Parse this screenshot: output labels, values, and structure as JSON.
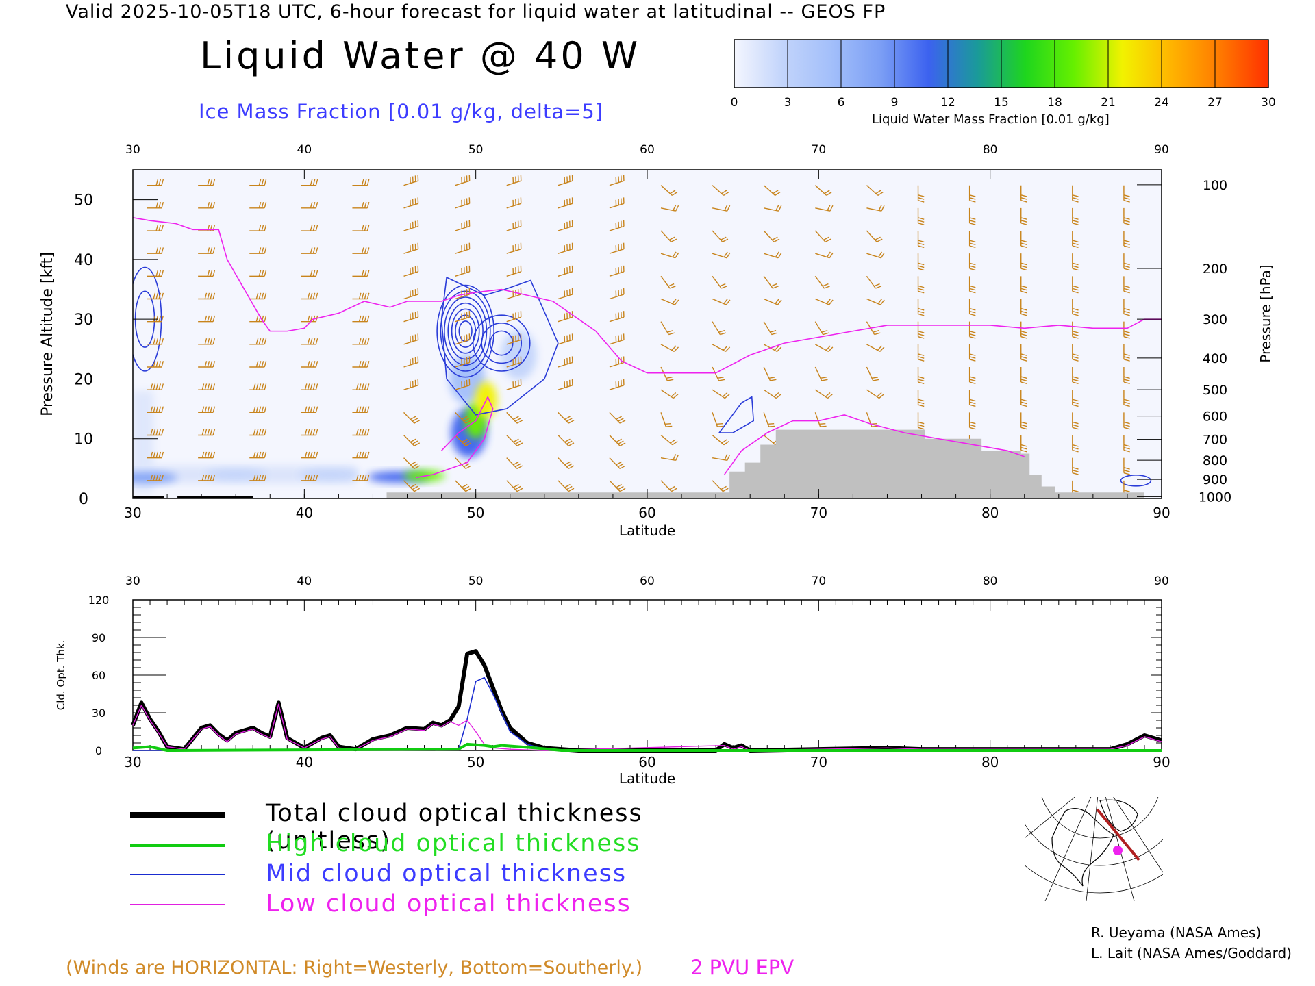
{
  "header": {
    "valid_line": "Valid 2025-10-05T18 UTC, 6-hour forecast for liquid water at latitudinal -- GEOS FP",
    "title": "Liquid Water @ 40 W",
    "ice_label": "Ice Mass Fraction [0.01 g/kg, delta=5]"
  },
  "colorbar": {
    "label": "Liquid Water Mass Fraction [0.01 g/kg]",
    "ticks": [
      "0",
      "3",
      "6",
      "9",
      "12",
      "15",
      "18",
      "21",
      "24",
      "27",
      "30"
    ],
    "colors": [
      "#f4f6fe",
      "#c2d4fb",
      "#a3bffa",
      "#7c9ff5",
      "#3c62ef",
      "#1a9a9a",
      "#1ed51e",
      "#66f000",
      "#f2f200",
      "#ffb400",
      "#ff7a00",
      "#ff3000"
    ]
  },
  "chart_data": [
    {
      "type": "heatmap",
      "xlabel": "Latitude",
      "ylabel": "Pressure Altitude [kft]",
      "y2label": "Pressure [hPa]",
      "xlim": [
        30,
        90
      ],
      "ylim": [
        0,
        55
      ],
      "x_ticks": [
        "30",
        "40",
        "50",
        "60",
        "70",
        "80",
        "90"
      ],
      "y_ticks": [
        "0",
        "10",
        "20",
        "30",
        "40",
        "50"
      ],
      "pressure_ticks": [
        {
          "hpa": "100",
          "kft": 52.5
        },
        {
          "hpa": "200",
          "kft": 38.5
        },
        {
          "hpa": "300",
          "kft": 30.0
        },
        {
          "hpa": "400",
          "kft": 23.5
        },
        {
          "hpa": "500",
          "kft": 18.2
        },
        {
          "hpa": "600",
          "kft": 13.8
        },
        {
          "hpa": "700",
          "kft": 9.9
        },
        {
          "hpa": "800",
          "kft": 6.4
        },
        {
          "hpa": "900",
          "kft": 3.2
        },
        {
          "hpa": "1000",
          "kft": 0.3
        }
      ],
      "liquid_water_blobs": [
        {
          "lat": 50.6,
          "kft": 16.5,
          "value": 22
        },
        {
          "lat": 50.0,
          "kft": 13.0,
          "value": 18
        },
        {
          "lat": 49.6,
          "kft": 11.0,
          "value": 12
        },
        {
          "lat": 47.0,
          "kft": 3.8,
          "value": 20
        },
        {
          "lat": 45.5,
          "kft": 3.6,
          "value": 12
        },
        {
          "lat": 49.5,
          "kft": 20.0,
          "value": 6
        },
        {
          "lat": 52.5,
          "kft": 24.0,
          "value": 3
        },
        {
          "lat": 30.8,
          "kft": 3.5,
          "value": 8
        },
        {
          "lat": 36.0,
          "kft": 4.0,
          "value": 2
        },
        {
          "lat": 41.5,
          "kft": 4.0,
          "value": 2
        }
      ],
      "epv_2pvu_line": [
        [
          30,
          47
        ],
        [
          31,
          46.5
        ],
        [
          32.5,
          46
        ],
        [
          33.5,
          45
        ],
        [
          35,
          45
        ],
        [
          35.5,
          40
        ],
        [
          36.5,
          35
        ],
        [
          37.5,
          30
        ],
        [
          38,
          28
        ],
        [
          39,
          28
        ],
        [
          40,
          28.5
        ],
        [
          40.5,
          30
        ],
        [
          42,
          31
        ],
        [
          43.5,
          33
        ],
        [
          45,
          32
        ],
        [
          46,
          33
        ],
        [
          48,
          33
        ],
        [
          49,
          34
        ],
        [
          50,
          34.5
        ],
        [
          51.5,
          35
        ],
        [
          53,
          34
        ],
        [
          54.5,
          33
        ],
        [
          57,
          28
        ],
        [
          58.5,
          23
        ],
        [
          60,
          21
        ],
        [
          62,
          21
        ],
        [
          64,
          21
        ],
        [
          66,
          24
        ],
        [
          68,
          26
        ],
        [
          70,
          27
        ],
        [
          72,
          28
        ],
        [
          74,
          29
        ],
        [
          76,
          29
        ],
        [
          78,
          29
        ],
        [
          80,
          29
        ],
        [
          82,
          28.5
        ],
        [
          84,
          29
        ],
        [
          86,
          28.5
        ],
        [
          88,
          28.5
        ],
        [
          89,
          30
        ],
        [
          90,
          30
        ]
      ],
      "epv_low_line": [
        [
          48,
          8
        ],
        [
          49,
          11
        ],
        [
          50,
          13
        ],
        [
          50.7,
          17
        ],
        [
          51,
          15
        ],
        [
          50.5,
          10
        ],
        [
          49.5,
          6
        ],
        [
          48.5,
          5
        ],
        [
          47.5,
          4
        ],
        [
          46.5,
          3.5
        ]
      ],
      "epv_low_line_2": [
        [
          64.5,
          4
        ],
        [
          65.5,
          8
        ],
        [
          67,
          11
        ],
        [
          68.5,
          13
        ],
        [
          70,
          13
        ],
        [
          71.5,
          14
        ],
        [
          73,
          12.5
        ],
        [
          75,
          11
        ],
        [
          77,
          10
        ],
        [
          79,
          9
        ],
        [
          81,
          8
        ],
        [
          82,
          7
        ]
      ],
      "ice_contour_centers": [
        {
          "lat": 49.4,
          "kft": 28,
          "rx": 1.5,
          "ry": 7
        },
        {
          "lat": 51.5,
          "kft": 26,
          "rx": 1.5,
          "ry": 4
        },
        {
          "lat": 30.7,
          "kft": 30,
          "rx": 0.8,
          "ry": 8
        }
      ],
      "terrain_steps": [
        [
          44.8,
          1
        ],
        [
          64.3,
          1
        ],
        [
          64.8,
          4.5
        ],
        [
          65.7,
          6
        ],
        [
          66.6,
          9
        ],
        [
          67.5,
          11.5
        ],
        [
          76.2,
          10
        ],
        [
          79.5,
          8
        ],
        [
          81.8,
          7.5
        ],
        [
          82.3,
          4
        ],
        [
          83.0,
          2
        ],
        [
          83.8,
          1
        ],
        [
          89.0,
          0
        ]
      ]
    },
    {
      "type": "line",
      "xlabel": "Latitude",
      "ylabel": "Cld. Opt. Thk.",
      "xlim": [
        30,
        90
      ],
      "ylim": [
        0,
        120
      ],
      "x_ticks": [
        "30",
        "40",
        "50",
        "60",
        "70",
        "80",
        "90"
      ],
      "y_ticks": [
        "0",
        "30",
        "60",
        "90",
        "120"
      ],
      "series": [
        {
          "name": "Total cloud optical thickness (unitless)",
          "color": "#000000",
          "points": [
            [
              30,
              20
            ],
            [
              30.5,
              38
            ],
            [
              31,
              25
            ],
            [
              31.5,
              15
            ],
            [
              32,
              3
            ],
            [
              33,
              1
            ],
            [
              34,
              18
            ],
            [
              34.5,
              20
            ],
            [
              35,
              13
            ],
            [
              35.5,
              8
            ],
            [
              36,
              14
            ],
            [
              37,
              18
            ],
            [
              37.5,
              14
            ],
            [
              38,
              11
            ],
            [
              38.5,
              38
            ],
            [
              39,
              10
            ],
            [
              40,
              2
            ],
            [
              41,
              10
            ],
            [
              41.5,
              12
            ],
            [
              42,
              3
            ],
            [
              43,
              1
            ],
            [
              44,
              9
            ],
            [
              45,
              12
            ],
            [
              46,
              18
            ],
            [
              47,
              17
            ],
            [
              47.5,
              22
            ],
            [
              48,
              20
            ],
            [
              48.5,
              24
            ],
            [
              49,
              35
            ],
            [
              49.5,
              77
            ],
            [
              50,
              79
            ],
            [
              50.5,
              68
            ],
            [
              51,
              50
            ],
            [
              51.5,
              32
            ],
            [
              52,
              18
            ],
            [
              53,
              6
            ],
            [
              54,
              2
            ],
            [
              56,
              0
            ],
            [
              64,
              0
            ],
            [
              64.5,
              5
            ],
            [
              65,
              2
            ],
            [
              65.5,
              4
            ],
            [
              66,
              0
            ],
            [
              70,
              1
            ],
            [
              74,
              2
            ],
            [
              76,
              1
            ],
            [
              87,
              1
            ],
            [
              88,
              5
            ],
            [
              89,
              12
            ],
            [
              90,
              8
            ]
          ]
        },
        {
          "name": "High cloud optical thickness",
          "color": "#11cc11",
          "points": [
            [
              30,
              2
            ],
            [
              31,
              3
            ],
            [
              32,
              0
            ],
            [
              49,
              1
            ],
            [
              49.5,
              5
            ],
            [
              50.5,
              4
            ],
            [
              51,
              3
            ],
            [
              51.5,
              4
            ],
            [
              52.5,
              3
            ],
            [
              53.5,
              2
            ],
            [
              55,
              0
            ],
            [
              90,
              0
            ]
          ]
        },
        {
          "name": "Mid cloud optical thickness",
          "color": "#1a2cd0",
          "points": [
            [
              30,
              0
            ],
            [
              49,
              1
            ],
            [
              49.5,
              25
            ],
            [
              50,
              55
            ],
            [
              50.5,
              58
            ],
            [
              51,
              45
            ],
            [
              51.5,
              30
            ],
            [
              52,
              15
            ],
            [
              53,
              5
            ],
            [
              54,
              1
            ],
            [
              56,
              0
            ],
            [
              90,
              0
            ]
          ]
        },
        {
          "name": "Low cloud optical thickness",
          "color": "#e020e0",
          "points": [
            [
              30,
              20
            ],
            [
              30.5,
              36
            ],
            [
              31,
              24
            ],
            [
              31.5,
              14
            ],
            [
              32,
              3
            ],
            [
              33,
              1
            ],
            [
              34,
              17
            ],
            [
              34.5,
              19
            ],
            [
              35,
              12
            ],
            [
              35.5,
              7
            ],
            [
              36,
              13
            ],
            [
              37,
              17
            ],
            [
              37.5,
              13
            ],
            [
              38,
              10
            ],
            [
              38.5,
              37
            ],
            [
              39,
              9
            ],
            [
              40,
              2
            ],
            [
              41,
              9
            ],
            [
              41.5,
              11
            ],
            [
              42,
              2
            ],
            [
              43,
              1
            ],
            [
              44,
              8
            ],
            [
              45,
              11
            ],
            [
              46,
              17
            ],
            [
              47,
              16
            ],
            [
              47.5,
              21
            ],
            [
              48,
              19
            ],
            [
              48.5,
              23
            ],
            [
              49,
              20
            ],
            [
              49.5,
              24
            ],
            [
              50,
              15
            ],
            [
              50.5,
              5
            ],
            [
              51,
              2
            ],
            [
              52,
              1
            ],
            [
              54,
              0
            ],
            [
              64.5,
              4
            ],
            [
              65,
              1
            ],
            [
              65.5,
              3
            ],
            [
              66,
              0
            ],
            [
              70,
              1
            ],
            [
              74,
              2
            ],
            [
              76,
              1
            ],
            [
              87,
              1
            ],
            [
              88,
              4
            ],
            [
              89,
              11
            ],
            [
              90,
              7
            ]
          ]
        }
      ]
    }
  ],
  "footer": {
    "winds_note": "(Winds are HORIZONTAL: Right=Westerly, Bottom=Southerly.)",
    "epv_note": "2 PVU EPV",
    "credit1": "R. Ueyama (NASA Ames)",
    "credit2": "L. Lait (NASA Ames/Goddard)"
  }
}
